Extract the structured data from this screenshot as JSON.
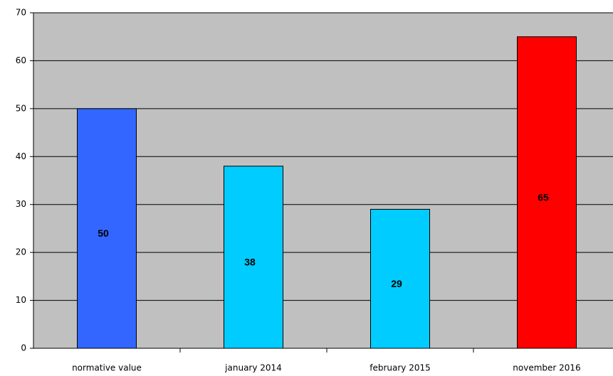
{
  "chart_data": {
    "type": "bar",
    "categories": [
      "normative value",
      "january 2014",
      "february 2015",
      "november 2016"
    ],
    "values": [
      50,
      38,
      29,
      65
    ],
    "colors": [
      "#3366ff",
      "#00ccff",
      "#00ccff",
      "#ff0000"
    ],
    "ylim": [
      0,
      70
    ],
    "yticks": [
      0,
      10,
      20,
      30,
      40,
      50,
      60,
      70
    ],
    "grid": true
  }
}
